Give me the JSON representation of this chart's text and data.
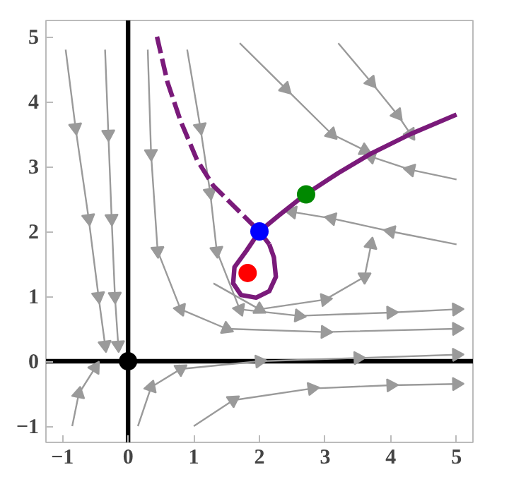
{
  "chart_data": {
    "type": "line",
    "xlim": [
      -1.25,
      5.25
    ],
    "ylim": [
      -1.25,
      5.25
    ],
    "xticks": [
      -1,
      0,
      1,
      2,
      3,
      4,
      5
    ],
    "yticks": [
      -1,
      0,
      1,
      2,
      3,
      4,
      5
    ],
    "grid": false,
    "series": [
      {
        "color": "#000000",
        "x": [
          0,
          0
        ],
        "values": [
          -1.25,
          5.25
        ]
      },
      {
        "color": "#000000",
        "x": [
          -1.25,
          5.25
        ],
        "values": [
          0,
          0
        ]
      },
      {
        "color": "#9a9a9a",
        "marker": "triangle",
        "x": [
          -0.95,
          -0.8,
          -0.6,
          -0.45,
          -0.35
        ],
        "values": [
          4.8,
          3.6,
          2.2,
          1.0,
          0.25
        ]
      },
      {
        "color": "#9a9a9a",
        "marker": "triangle",
        "x": [
          -0.35,
          -0.3,
          -0.25,
          -0.2,
          -0.15
        ],
        "values": [
          4.8,
          3.5,
          2.2,
          1.0,
          0.25
        ]
      },
      {
        "color": "#9a9a9a",
        "marker": "triangle",
        "x": [
          0.3,
          0.35,
          0.45,
          0.8,
          1.5,
          3.0,
          5.0
        ],
        "values": [
          4.8,
          3.2,
          1.7,
          0.8,
          0.5,
          0.45,
          0.5
        ]
      },
      {
        "color": "#9a9a9a",
        "marker": "triangle",
        "x": [
          0.9,
          1.1,
          1.25,
          1.35,
          1.7,
          2.6,
          4.0,
          5.0
        ],
        "values": [
          4.8,
          3.6,
          2.6,
          1.7,
          0.8,
          0.7,
          0.75,
          0.8
        ]
      },
      {
        "color": "#9a9a9a",
        "marker": "triangle",
        "x": [
          -0.85,
          -0.75,
          -0.5
        ],
        "values": [
          -1.0,
          -0.5,
          -0.1
        ]
      },
      {
        "color": "#9a9a9a",
        "marker": "triangle",
        "x": [
          0.15,
          0.35,
          0.8,
          2.0,
          3.5,
          5.0
        ],
        "values": [
          -1.0,
          -0.4,
          -0.12,
          0.0,
          0.05,
          0.1
        ]
      },
      {
        "color": "#9a9a9a",
        "marker": "triangle",
        "x": [
          1.0,
          1.6,
          2.8,
          4.0,
          5.0
        ],
        "values": [
          -1.0,
          -0.6,
          -0.42,
          -0.37,
          -0.35
        ]
      },
      {
        "color": "#9a9a9a",
        "marker": "triangle",
        "x": [
          1.7,
          2.4,
          3.1,
          3.6
        ],
        "values": [
          4.9,
          4.2,
          3.5,
          3.25
        ]
      },
      {
        "color": "#9a9a9a",
        "marker": "triangle",
        "x": [
          3.2,
          3.7,
          4.1,
          4.3
        ],
        "values": [
          4.9,
          4.3,
          3.8,
          3.5
        ]
      },
      {
        "color": "#9a9a9a",
        "marker": "triangle",
        "x": [
          5.0,
          4.3,
          3.7
        ],
        "values": [
          2.8,
          2.95,
          3.15
        ]
      },
      {
        "color": "#9a9a9a",
        "marker": "triangle",
        "x": [
          5.0,
          4.0,
          3.1,
          2.5
        ],
        "values": [
          1.8,
          2.0,
          2.2,
          2.3
        ]
      },
      {
        "color": "#9a9a9a",
        "marker": "triangle",
        "x": [
          1.3,
          2.0,
          3.0,
          3.6,
          3.7
        ],
        "values": [
          1.2,
          0.8,
          0.95,
          1.3,
          1.8
        ]
      },
      {
        "color": "#7a1a7a",
        "line_style": "dashed",
        "x": [
          0.44,
          0.6,
          0.8,
          1.05,
          1.3,
          1.6,
          1.85,
          2.0,
          2.15
        ],
        "values": [
          5.0,
          4.3,
          3.7,
          3.1,
          2.7,
          2.4,
          2.15,
          2.0,
          1.8
        ]
      },
      {
        "color": "#7a1a7a",
        "line_style": "solid",
        "x": [
          2.15,
          2.22,
          2.25,
          2.15,
          1.95,
          1.72,
          1.6,
          1.62,
          1.8,
          2.0,
          2.3,
          2.7,
          3.2,
          3.7,
          4.3,
          5.0
        ],
        "values": [
          1.8,
          1.6,
          1.3,
          1.08,
          0.98,
          1.02,
          1.2,
          1.45,
          1.7,
          2.0,
          2.25,
          2.57,
          2.9,
          3.2,
          3.5,
          3.8
        ]
      },
      {
        "type": "scatter",
        "color": "#000000",
        "marker": "circle",
        "x": [
          0
        ],
        "values": [
          0
        ]
      },
      {
        "type": "scatter",
        "color": "#ff0000",
        "marker": "circle",
        "x": [
          1.82
        ],
        "values": [
          1.36
        ]
      },
      {
        "type": "scatter",
        "color": "#0000ff",
        "marker": "circle",
        "x": [
          2.0
        ],
        "values": [
          2.0
        ]
      },
      {
        "type": "scatter",
        "color": "#008800",
        "marker": "circle",
        "x": [
          2.71
        ],
        "values": [
          2.57
        ]
      }
    ]
  }
}
